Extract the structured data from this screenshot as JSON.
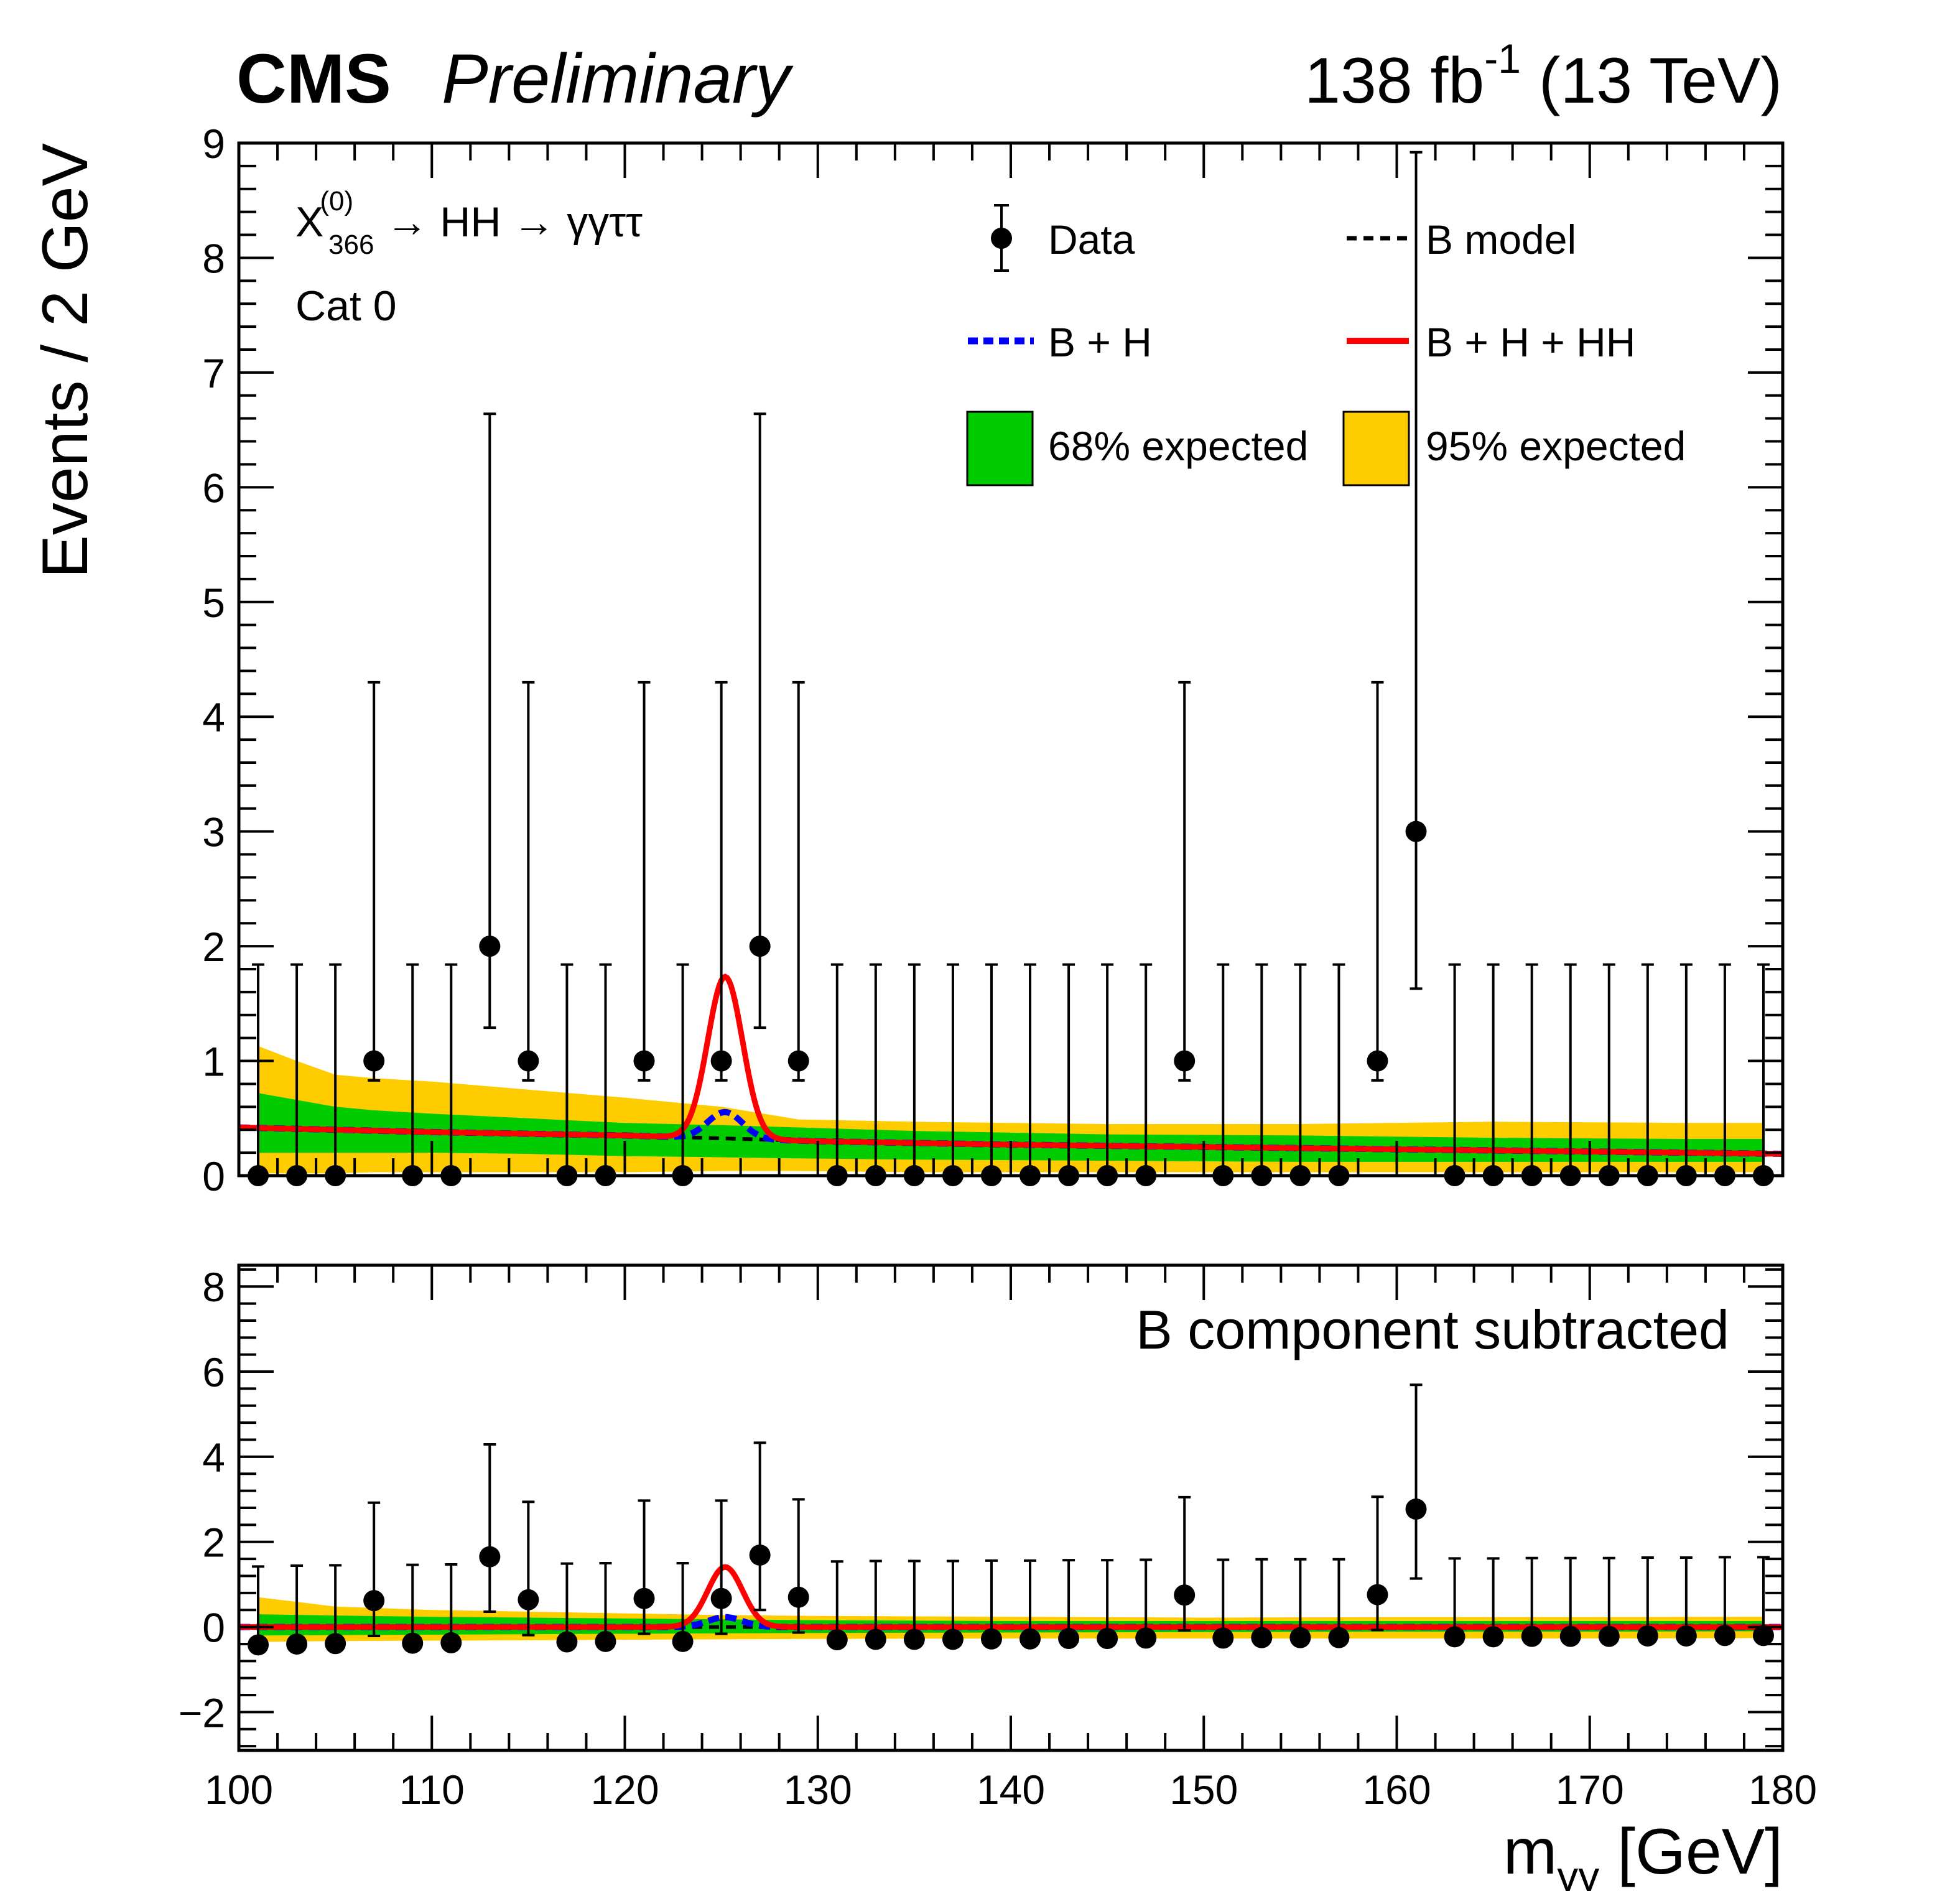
{
  "header": {
    "experiment": "CMS",
    "status": "Preliminary",
    "luminosity": "138 fb",
    "lumi_exponent": "-1",
    "energy": " (13 TeV)"
  },
  "process": {
    "particle": "X",
    "superscript": "(0)",
    "subscript": "366",
    "decay_text": " → HH → γγττ"
  },
  "category": "Cat 0",
  "legend": {
    "data": "Data",
    "b_model": "B model",
    "b_h": "B + H",
    "b_h_hh": "B + H + HH",
    "band68": "68% expected",
    "band95": "95% expected"
  },
  "lower_panel_label": "B component subtracted",
  "colors": {
    "band68": "#00cc00",
    "band95": "#ffcc00",
    "b_model": "#000000",
    "b_h": "#0000ff",
    "b_h_hh": "#ff0000",
    "data": "#000000"
  },
  "chart_data": [
    {
      "type": "scatter",
      "panel": "main",
      "ylabel": "Events / 2 GeV",
      "xlim": [
        100,
        180
      ],
      "ylim": [
        0,
        9
      ],
      "yticks": [
        0,
        1,
        2,
        3,
        4,
        5,
        6,
        7,
        8,
        9
      ],
      "x": [
        101,
        103,
        105,
        107,
        109,
        111,
        113,
        115,
        117,
        119,
        121,
        123,
        125,
        127,
        129,
        131,
        133,
        135,
        137,
        139,
        141,
        143,
        145,
        147,
        149,
        151,
        153,
        155,
        157,
        159,
        161,
        163,
        165,
        167,
        169,
        171,
        173,
        175,
        177,
        179
      ],
      "series": [
        {
          "name": "Data",
          "values": [
            0,
            0,
            0,
            1,
            0,
            0,
            2,
            1,
            0,
            0,
            1,
            0,
            1,
            2,
            1,
            0,
            0,
            0,
            0,
            0,
            0,
            0,
            0,
            0,
            1,
            0,
            0,
            0,
            0,
            1,
            3,
            0,
            0,
            0,
            0,
            0,
            0,
            0,
            0,
            0
          ],
          "err_hi": [
            1.84,
            1.84,
            1.84,
            3.3,
            1.84,
            1.84,
            4.64,
            3.3,
            1.84,
            1.84,
            3.3,
            1.84,
            3.3,
            4.64,
            3.3,
            1.84,
            1.84,
            1.84,
            1.84,
            1.84,
            1.84,
            1.84,
            1.84,
            1.84,
            3.3,
            1.84,
            1.84,
            1.84,
            1.84,
            3.3,
            5.92,
            1.84,
            1.84,
            1.84,
            1.84,
            1.84,
            1.84,
            1.84,
            1.84,
            1.84
          ],
          "err_lo": [
            0,
            0,
            0,
            0.17,
            0,
            0,
            0.71,
            0.17,
            0,
            0,
            0.17,
            0,
            0.17,
            0.71,
            0.17,
            0,
            0,
            0,
            0,
            0,
            0,
            0,
            0,
            0,
            0.17,
            0,
            0,
            0,
            0,
            0.17,
            1.37,
            0,
            0,
            0,
            0,
            0,
            0,
            0,
            0,
            0
          ]
        }
      ],
      "b_model": {
        "x": [
          100,
          110,
          120,
          130,
          140,
          150,
          160,
          170,
          180
        ],
        "y": [
          0.42,
          0.38,
          0.35,
          0.3,
          0.27,
          0.25,
          0.23,
          0.21,
          0.19
        ]
      },
      "signal": {
        "mass": 125.2,
        "width": 0.9,
        "h_amplitude": 0.23,
        "hh_amplitude": 1.18
      },
      "band68": {
        "x": [
          101,
          103,
          105,
          107,
          110,
          115,
          120,
          125,
          129,
          135,
          145,
          155,
          165,
          175,
          179
        ],
        "lo": [
          0.2,
          0.2,
          0.2,
          0.2,
          0.2,
          0.19,
          0.17,
          0.16,
          0.15,
          0.14,
          0.13,
          0.12,
          0.12,
          0.12,
          0.12
        ],
        "hi": [
          0.72,
          0.66,
          0.6,
          0.57,
          0.54,
          0.5,
          0.46,
          0.44,
          0.42,
          0.39,
          0.36,
          0.35,
          0.33,
          0.32,
          0.32
        ]
      },
      "band95": {
        "x": [
          101,
          103,
          105,
          107,
          110,
          115,
          120,
          125,
          129,
          135,
          145,
          155,
          165,
          175,
          179
        ],
        "lo": [
          0.02,
          0.02,
          0.02,
          0.03,
          0.03,
          0.03,
          0.03,
          0.04,
          0.04,
          0.03,
          0.03,
          0.03,
          0.03,
          0.03,
          0.03
        ],
        "hi": [
          1.13,
          1.0,
          0.88,
          0.85,
          0.82,
          0.75,
          0.68,
          0.6,
          0.49,
          0.47,
          0.45,
          0.45,
          0.47,
          0.46,
          0.46
        ]
      }
    },
    {
      "type": "scatter",
      "panel": "ratio",
      "xlabel": "m",
      "xlabel_sub": "γγ",
      "xlabel_unit": " [GeV]",
      "xlim": [
        100,
        180
      ],
      "ylim": [
        -2.9,
        8.5
      ],
      "xticks": [
        100,
        110,
        120,
        130,
        140,
        150,
        160,
        170,
        180
      ],
      "yticks": [
        -2,
        0,
        2,
        4,
        6,
        8
      ],
      "x": [
        101,
        103,
        105,
        107,
        109,
        111,
        113,
        115,
        117,
        119,
        121,
        123,
        125,
        127,
        129,
        131,
        133,
        135,
        137,
        139,
        141,
        143,
        145,
        147,
        149,
        151,
        153,
        155,
        157,
        159,
        161,
        163,
        165,
        167,
        169,
        171,
        173,
        175,
        177,
        179
      ],
      "series": [
        {
          "name": "Data",
          "values": [
            -0.42,
            -0.4,
            -0.39,
            0.62,
            -0.38,
            -0.37,
            1.65,
            0.64,
            -0.35,
            -0.34,
            0.67,
            -0.34,
            0.67,
            1.69,
            0.7,
            -0.3,
            -0.29,
            -0.29,
            -0.29,
            -0.28,
            -0.28,
            -0.27,
            -0.27,
            -0.26,
            0.75,
            -0.26,
            -0.25,
            -0.25,
            -0.25,
            0.76,
            2.77,
            -0.23,
            -0.23,
            -0.22,
            -0.22,
            -0.22,
            -0.21,
            -0.21,
            -0.2,
            -0.2
          ],
          "err_hi": [
            1.84,
            1.84,
            1.84,
            2.3,
            1.84,
            1.84,
            2.64,
            2.3,
            1.84,
            1.84,
            2.3,
            1.84,
            2.3,
            2.64,
            2.3,
            1.84,
            1.84,
            1.84,
            1.84,
            1.84,
            1.84,
            1.84,
            1.84,
            1.84,
            2.3,
            1.84,
            1.84,
            1.84,
            1.84,
            2.3,
            2.92,
            1.84,
            1.84,
            1.84,
            1.84,
            1.84,
            1.84,
            1.84,
            1.84,
            1.84
          ],
          "err_lo": [
            0,
            0,
            0,
            0.83,
            0,
            0,
            1.29,
            0.83,
            0,
            0,
            0.83,
            0,
            0.83,
            1.29,
            0.83,
            0,
            0,
            0,
            0,
            0,
            0,
            0,
            0,
            0,
            0.83,
            0,
            0,
            0,
            0,
            0.83,
            1.63,
            0,
            0,
            0,
            0,
            0,
            0,
            0,
            0,
            0
          ]
        }
      ],
      "b_model": {
        "x": [
          100,
          180
        ],
        "y": [
          0,
          0
        ]
      },
      "signal": {
        "mass": 125.2,
        "width": 0.9,
        "h_amplitude": 0.23,
        "hh_amplitude": 1.18
      },
      "band68": {
        "x": [
          101,
          105,
          110,
          120,
          125,
          130,
          140,
          150,
          160,
          170,
          179
        ],
        "lo": [
          -0.2,
          -0.19,
          -0.18,
          -0.16,
          -0.15,
          -0.14,
          -0.13,
          -0.12,
          -0.11,
          -0.11,
          -0.1
        ],
        "hi": [
          0.3,
          0.27,
          0.24,
          0.2,
          0.18,
          0.16,
          0.14,
          0.14,
          0.14,
          0.14,
          0.14
        ]
      },
      "band95": {
        "x": [
          101,
          105,
          110,
          120,
          125,
          130,
          140,
          150,
          160,
          170,
          179
        ],
        "lo": [
          -0.35,
          -0.33,
          -0.32,
          -0.3,
          -0.29,
          -0.28,
          -0.27,
          -0.27,
          -0.27,
          -0.27,
          -0.26
        ],
        "hi": [
          0.7,
          0.48,
          0.4,
          0.32,
          0.28,
          0.26,
          0.24,
          0.22,
          0.23,
          0.23,
          0.24
        ]
      }
    }
  ]
}
